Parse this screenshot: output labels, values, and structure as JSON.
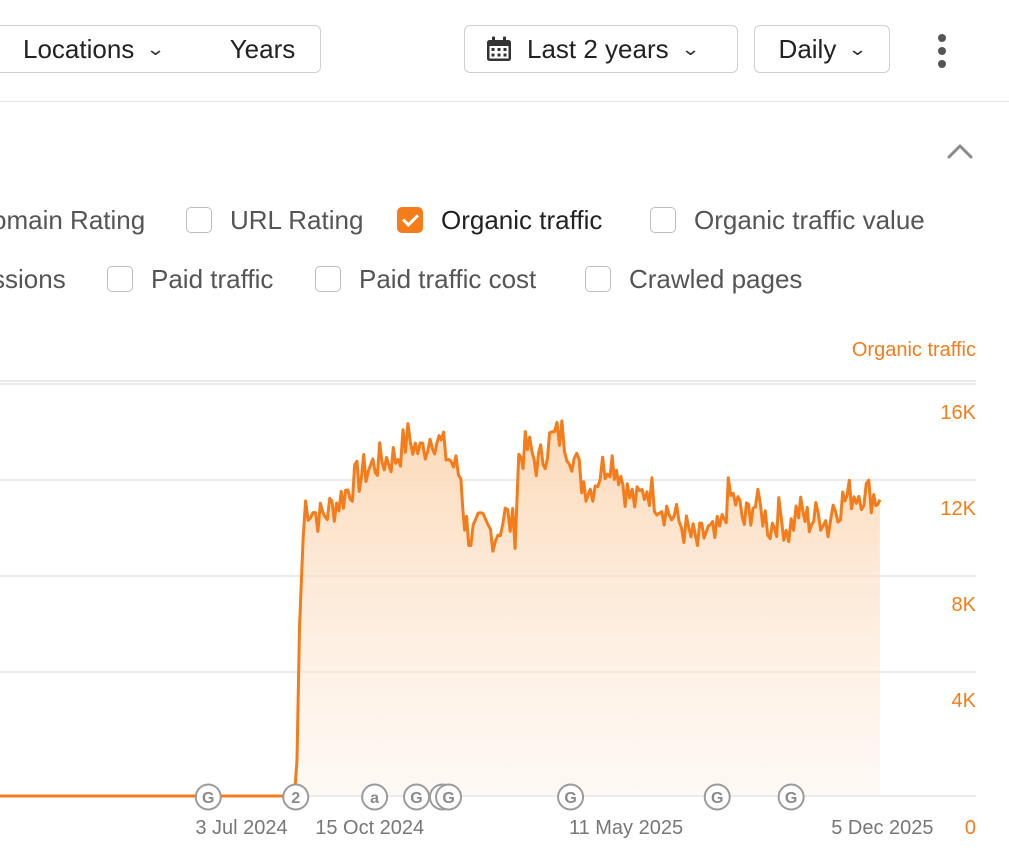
{
  "toolbar": {
    "locations_label": "Locations",
    "years_label": "Years",
    "date_range_label": "Last 2 years",
    "interval_label": "Daily",
    "icons": [
      "chevron-down-icon",
      "calendar-icon",
      "more-vertical-icon",
      "chevron-up-icon"
    ]
  },
  "metrics": {
    "row1": [
      {
        "label": "omain Rating",
        "checked": false,
        "partial": true
      },
      {
        "label": "URL Rating",
        "checked": false
      },
      {
        "label": "Organic traffic",
        "checked": true
      },
      {
        "label": "Organic traffic value",
        "checked": false
      }
    ],
    "row2": [
      {
        "label": "ssions",
        "checked": false,
        "partial": true
      },
      {
        "label": "Paid traffic",
        "checked": false
      },
      {
        "label": "Paid traffic cost",
        "checked": false
      },
      {
        "label": "Crawled pages",
        "checked": false
      }
    ]
  },
  "colors": {
    "accent": "#f47c1b",
    "grid": "#e3e3e3",
    "marker": "#9b9b9b"
  },
  "chart_data": {
    "type": "area",
    "series": [
      {
        "name": "Organic traffic",
        "color": "#f47c1b"
      }
    ],
    "x_domain": [
      "2023-12-20",
      "2025-12-25"
    ],
    "x_ticks": [
      {
        "date": "2024-07-03",
        "label": "3 Jul 2024"
      },
      {
        "date": "2024-10-15",
        "label": "15 Oct 2024"
      },
      {
        "date": "2025-05-11",
        "label": "11 May 2025"
      },
      {
        "date": "2025-12-05",
        "label": "5 Dec 2025"
      }
    ],
    "y_axis_label": "Organic traffic",
    "y_ticks": [
      {
        "v": 0,
        "label": "0"
      },
      {
        "v": 4000,
        "label": "4K"
      },
      {
        "v": 8000,
        "label": "8K"
      },
      {
        "v": 12000,
        "label": "12K"
      },
      {
        "v": 16000,
        "label": "16K"
      }
    ],
    "ylim": [
      0,
      16000
    ],
    "grid": true,
    "points": [
      [
        "2023-12-20",
        0
      ],
      [
        "2024-08-15",
        0
      ],
      [
        "2024-08-17",
        1500
      ],
      [
        "2024-08-19",
        7000
      ],
      [
        "2024-08-22",
        10800
      ],
      [
        "2024-08-24",
        12200
      ],
      [
        "2024-09-05",
        11600
      ],
      [
        "2024-09-20",
        12300
      ],
      [
        "2024-10-01",
        13000
      ],
      [
        "2024-10-12",
        13600
      ],
      [
        "2024-10-25",
        14000
      ],
      [
        "2024-11-05",
        14100
      ],
      [
        "2024-11-15",
        14900
      ],
      [
        "2024-11-25",
        14300
      ],
      [
        "2024-12-05",
        15100
      ],
      [
        "2024-12-12",
        14600
      ],
      [
        "2024-12-22",
        13800
      ],
      [
        "2024-12-28",
        13300
      ],
      [
        "2024-12-31",
        11500
      ],
      [
        "2025-01-05",
        10800
      ],
      [
        "2025-01-15",
        11200
      ],
      [
        "2025-01-25",
        10900
      ],
      [
        "2025-02-02",
        11700
      ],
      [
        "2025-02-10",
        11100
      ],
      [
        "2025-02-13",
        14100
      ],
      [
        "2025-02-20",
        14500
      ],
      [
        "2025-03-01",
        13800
      ],
      [
        "2025-03-10",
        14800
      ],
      [
        "2025-03-20",
        15100
      ],
      [
        "2025-03-28",
        14300
      ],
      [
        "2025-04-05",
        13200
      ],
      [
        "2025-04-12",
        12800
      ],
      [
        "2025-04-20",
        13500
      ],
      [
        "2025-04-28",
        14100
      ],
      [
        "2025-05-05",
        13600
      ],
      [
        "2025-05-12",
        12600
      ],
      [
        "2025-05-20",
        12200
      ],
      [
        "2025-05-28",
        12900
      ],
      [
        "2025-06-05",
        12400
      ],
      [
        "2025-06-15",
        11800
      ],
      [
        "2025-06-25",
        11300
      ],
      [
        "2025-07-01",
        10900
      ],
      [
        "2025-07-08",
        10500
      ],
      [
        "2025-07-15",
        11000
      ],
      [
        "2025-07-22",
        10700
      ],
      [
        "2025-07-28",
        11200
      ],
      [
        "2025-08-02",
        12500
      ],
      [
        "2025-08-08",
        12300
      ],
      [
        "2025-08-15",
        11400
      ],
      [
        "2025-08-22",
        12200
      ],
      [
        "2025-08-30",
        11800
      ],
      [
        "2025-09-05",
        11200
      ],
      [
        "2025-09-12",
        11700
      ],
      [
        "2025-09-20",
        11100
      ],
      [
        "2025-09-28",
        11900
      ],
      [
        "2025-10-05",
        11500
      ],
      [
        "2025-10-12",
        11600
      ],
      [
        "2025-10-18",
        11800
      ],
      [
        "2025-10-22",
        11200
      ],
      [
        "2025-10-26",
        12100
      ],
      [
        "2025-11-01",
        12200
      ],
      [
        "2025-11-10",
        12600
      ],
      [
        "2025-11-20",
        12700
      ],
      [
        "2025-11-28",
        12500
      ],
      [
        "2025-12-03",
        12350
      ]
    ],
    "annotations": [
      {
        "date": "2024-06-06",
        "label": "G"
      },
      {
        "date": "2024-08-16",
        "label": "2"
      },
      {
        "date": "2024-10-19",
        "label": "a"
      },
      {
        "date": "2024-11-22",
        "label": "G"
      },
      {
        "date": "2024-12-13",
        "label": "G"
      },
      {
        "date": "2024-12-18",
        "label": "G"
      },
      {
        "date": "2025-03-27",
        "label": "G"
      },
      {
        "date": "2025-07-24",
        "label": "G"
      },
      {
        "date": "2025-09-22",
        "label": "G"
      }
    ]
  }
}
